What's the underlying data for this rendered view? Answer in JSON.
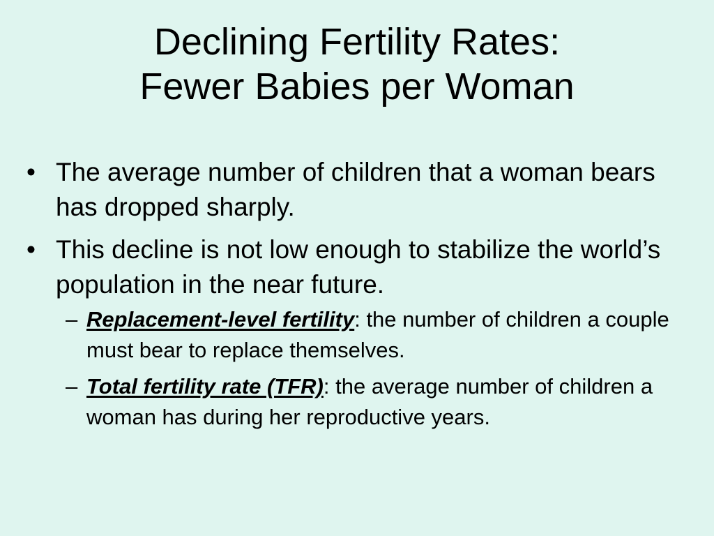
{
  "title": {
    "line1": "Declining Fertility Rates:",
    "line2": "Fewer Babies per Woman"
  },
  "bullets": [
    {
      "marker": "•",
      "text": "The average number of children that a woman bears has dropped sharply."
    },
    {
      "marker": "•",
      "text": "This decline is not low enough to stabilize the world’s population in the near future."
    }
  ],
  "sub_bullets": [
    {
      "marker": "–",
      "term": "Replacement-level fertility",
      "separator": ":",
      "definition": " the number of children a couple must bear to replace themselves."
    },
    {
      "marker": "–",
      "term": "Total fertility rate (TFR)",
      "separator": ":",
      "definition": " the average number of children a woman has during her reproductive years."
    }
  ]
}
